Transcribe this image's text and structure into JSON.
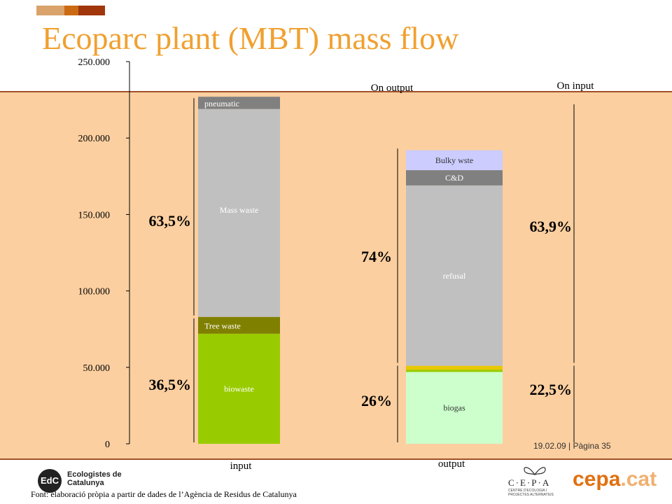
{
  "title": "Ecoparc plant (MBT) mass flow",
  "page_number": "19.02.09  | Pàgina 35",
  "footer_source": "Font: elaboració pròpia a partir de dades de l’Agència de Residus de Catalunya",
  "logos": {
    "left_org": "Ecologistes de Catalunya",
    "left_mark": "EdC",
    "right_org": "C·E·P·A",
    "right_sub": "CENTRE D'ECOLOGIA I PROJECTES ALTERNATIUS",
    "right_brand": "cepa",
    "right_brand_tld": ".cat"
  },
  "colors": {
    "title": "#f0a030",
    "band": "#fccfa0",
    "band_border": "#a0502a",
    "deco": [
      "#d9a36b",
      "#cc6a14",
      "#a0360a"
    ]
  },
  "chart_data": {
    "type": "bar",
    "stacked": true,
    "ylim": [
      0,
      250000
    ],
    "yticks": [
      {
        "value": 0,
        "label": "0"
      },
      {
        "value": 50000,
        "label": "50.000"
      },
      {
        "value": 100000,
        "label": "100.000"
      },
      {
        "value": 150000,
        "label": "150.000"
      },
      {
        "value": 200000,
        "label": "200.000"
      },
      {
        "value": 250000,
        "label": "250.000"
      }
    ],
    "categories": [
      "input",
      "output"
    ],
    "stacks": [
      {
        "category": "input",
        "segments": [
          {
            "name": "biowaste",
            "value": 72000,
            "color": "#99cc00"
          },
          {
            "name": "Tree waste",
            "value": 11000,
            "color": "#808000"
          },
          {
            "name": "Mass waste",
            "value": 136000,
            "color": "#c0c0c0"
          },
          {
            "name": "pneumatic",
            "value": 8000,
            "color": "#808080"
          }
        ]
      },
      {
        "category": "output",
        "segments": [
          {
            "name": "biogas",
            "value": 47000,
            "color": "#ccffcc"
          },
          {
            "name": "",
            "value": 1500,
            "color": "#99cc00"
          },
          {
            "name": "",
            "value": 2500,
            "color": "#e8c800"
          },
          {
            "name": "refusal",
            "value": 118000,
            "color": "#c0c0c0"
          },
          {
            "name": "C&D",
            "value": 10000,
            "color": "#808080"
          },
          {
            "name": "Bulky wste",
            "value": 13000,
            "color": "#ccccff"
          }
        ]
      }
    ],
    "annotations": {
      "input_left": [
        {
          "label": "36,5%",
          "from": 0,
          "to": 83000
        },
        {
          "label": "63,5%",
          "from": 83000,
          "to": 227000
        }
      ],
      "output_left": [
        {
          "label": "26%",
          "from": 0,
          "to": 52000
        },
        {
          "label": "74%",
          "from": 52000,
          "to": 194000
        }
      ],
      "output_right": [
        {
          "label": "22,5%",
          "from": 0,
          "to": 52000
        },
        {
          "label": "63,9%",
          "from": 52000,
          "to": 223000
        }
      ]
    },
    "headers": {
      "on_output": "On output",
      "on_input": "On input"
    }
  }
}
